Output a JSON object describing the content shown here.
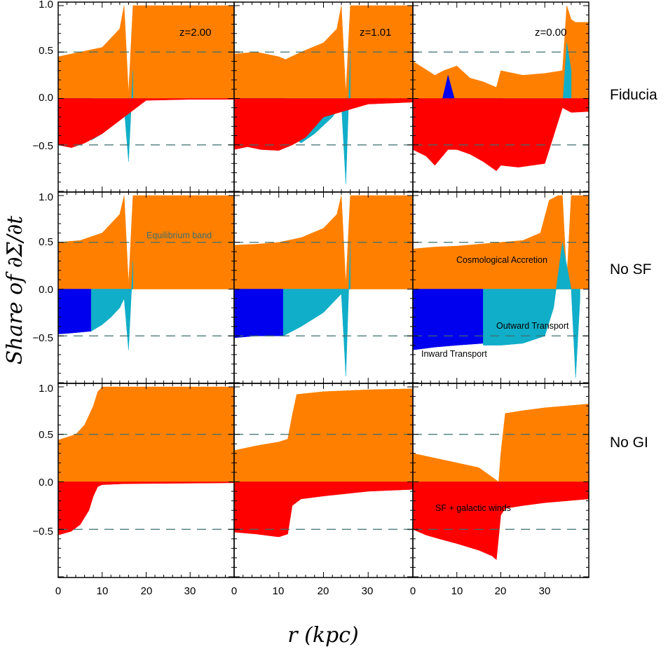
{
  "figure": {
    "ylabel": "Share of ∂Σ/∂t",
    "xlabel": "r (kpc)",
    "row_labels": [
      "Fiducia",
      "No SF",
      "No GI"
    ],
    "column_labels": [
      "z=2.00",
      "z=1.01",
      "z=0.00"
    ],
    "x_ticks": [
      "0",
      "10",
      "20",
      "30"
    ],
    "y_ticks": [
      "1.0",
      "0.5",
      "0.0",
      "−0.5"
    ],
    "annotations": {
      "equilibrium_band": "Equilibrium band",
      "cosmological_accretion": "Cosmological Accretion",
      "outward_transport": "Outward Transport",
      "inward_transport": "Inward Transport",
      "sf_winds": "SF + galactic winds"
    },
    "colors": {
      "cosmological_accretion": "#ff8000",
      "inward_transport": "#0000ee",
      "outward_transport": "#10aec8",
      "sf_winds": "#ff0000",
      "equilibrium_band_line": "#3d6e6e"
    }
  },
  "chart_data": [
    {
      "type": "area",
      "row": "Fiducia",
      "column": "z=2.00",
      "xlim": [
        0,
        40
      ],
      "ylim": [
        -1,
        1
      ],
      "equilibrium_band": [
        -0.5,
        0.5
      ],
      "series": [
        {
          "name": "Cosmological Accretion",
          "x": [
            0,
            5,
            10,
            14,
            15,
            16,
            17,
            18,
            25,
            40
          ],
          "values": [
            0.45,
            0.5,
            0.55,
            0.75,
            1.0,
            0.05,
            1.0,
            1.0,
            1.0,
            1.0
          ]
        },
        {
          "name": "Inward Transport",
          "x": [
            0,
            1,
            3,
            5,
            7.5
          ],
          "values": [
            -0.05,
            -0.3,
            -0.33,
            -0.36,
            -0.4
          ]
        },
        {
          "name": "Outward Transport",
          "x": [
            7.5,
            10,
            12,
            14,
            15,
            16,
            17
          ],
          "values": [
            -0.45,
            -0.38,
            -0.3,
            -0.22,
            -0.1,
            -0.68,
            0.3
          ]
        },
        {
          "name": "SF + galactic winds",
          "x": [
            0,
            3,
            6,
            10,
            15,
            20,
            30,
            40
          ],
          "values": [
            -0.5,
            -0.53,
            -0.48,
            -0.38,
            -0.2,
            -0.02,
            -0.01,
            -0.01
          ]
        }
      ]
    },
    {
      "type": "area",
      "row": "Fiducia",
      "column": "z=1.01",
      "xlim": [
        0,
        40
      ],
      "ylim": [
        -1,
        1
      ],
      "equilibrium_band": [
        -0.5,
        0.5
      ],
      "series": [
        {
          "name": "Cosmological Accretion",
          "x": [
            0,
            5,
            10,
            11.5,
            15,
            20,
            23,
            24,
            25,
            26,
            30,
            40
          ],
          "values": [
            0.48,
            0.5,
            0.45,
            0.42,
            0.5,
            0.6,
            0.75,
            1.0,
            0.05,
            1.0,
            1.0,
            1.0
          ]
        },
        {
          "name": "Inward Transport",
          "x": [
            0,
            2,
            6,
            9,
            11.5
          ],
          "values": [
            -0.05,
            -0.15,
            -0.25,
            -0.3,
            -0.36
          ]
        },
        {
          "name": "Outward Transport",
          "x": [
            11.5,
            15,
            18,
            22,
            24,
            25,
            26
          ],
          "values": [
            -0.36,
            -0.48,
            -0.38,
            -0.2,
            -0.05,
            -0.92,
            0.5
          ]
        },
        {
          "name": "SF + galactic winds",
          "x": [
            0,
            3,
            6,
            10,
            13,
            16,
            20,
            30,
            40
          ],
          "values": [
            -0.55,
            -0.52,
            -0.55,
            -0.56,
            -0.5,
            -0.42,
            -0.2,
            -0.06,
            -0.04
          ]
        }
      ]
    },
    {
      "type": "area",
      "row": "Fiducia",
      "column": "z=0.00",
      "xlim": [
        0,
        40
      ],
      "ylim": [
        -1,
        1
      ],
      "equilibrium_band": [
        -0.5,
        0.5
      ],
      "series": [
        {
          "name": "Cosmological Accretion",
          "x": [
            0,
            5,
            7,
            10,
            13,
            16,
            19,
            20,
            25,
            30,
            34,
            35,
            36,
            37,
            40
          ],
          "values": [
            0.4,
            0.25,
            0.3,
            0.35,
            0.22,
            0.18,
            0.12,
            0.3,
            0.25,
            0.27,
            0.3,
            1.0,
            0.85,
            0.82,
            0.82
          ]
        },
        {
          "name": "Inward Transport",
          "x": [
            6.5,
            8,
            10,
            13,
            16,
            20.5
          ],
          "values": [
            -0.05,
            0.25,
            -0.1,
            -0.2,
            -0.25,
            -0.3
          ]
        },
        {
          "name": "Outward Transport",
          "x": [
            20.5,
            24,
            28,
            32,
            34,
            35,
            36
          ],
          "values": [
            -0.55,
            -0.5,
            -0.45,
            -0.35,
            -0.1,
            0.6,
            0.3
          ]
        },
        {
          "name": "SF + galactic winds",
          "x": [
            0,
            3,
            5,
            8,
            10,
            13,
            16,
            19,
            20,
            24,
            30,
            34,
            36,
            40
          ],
          "values": [
            -0.55,
            -0.62,
            -0.72,
            -0.55,
            -0.55,
            -0.6,
            -0.68,
            -0.78,
            -0.72,
            -0.74,
            -0.7,
            -0.1,
            -0.15,
            -0.14
          ]
        }
      ]
    },
    {
      "type": "area",
      "row": "No SF",
      "column": "z=2.00",
      "xlim": [
        0,
        40
      ],
      "ylim": [
        -1,
        1
      ],
      "equilibrium_band": [
        -0.5,
        0.5
      ],
      "series": [
        {
          "name": "Cosmological Accretion",
          "x": [
            0,
            5,
            10,
            14,
            15,
            16,
            17,
            18,
            25,
            40
          ],
          "values": [
            0.5,
            0.52,
            0.6,
            0.8,
            1.0,
            0.05,
            1.0,
            1.0,
            1.0,
            1.0
          ]
        },
        {
          "name": "Inward Transport",
          "x": [
            0,
            3,
            7.5
          ],
          "values": [
            -0.48,
            -0.47,
            -0.45
          ]
        },
        {
          "name": "Outward Transport",
          "x": [
            7.5,
            10,
            12,
            14,
            15,
            16,
            17
          ],
          "values": [
            -0.45,
            -0.38,
            -0.3,
            -0.2,
            -0.1,
            -0.65,
            0.3
          ]
        },
        {
          "name": "SF + galactic winds",
          "x": [
            0,
            40
          ],
          "values": [
            0,
            0
          ]
        }
      ]
    },
    {
      "type": "area",
      "row": "No SF",
      "column": "z=1.01",
      "xlim": [
        0,
        40
      ],
      "ylim": [
        -1,
        1
      ],
      "equilibrium_band": [
        -0.5,
        0.5
      ],
      "series": [
        {
          "name": "Cosmological Accretion",
          "x": [
            0,
            5,
            10,
            15,
            20,
            23,
            24,
            25,
            26,
            30,
            40
          ],
          "values": [
            0.47,
            0.48,
            0.5,
            0.55,
            0.65,
            0.8,
            1.0,
            0.05,
            1.0,
            1.0,
            1.0
          ]
        },
        {
          "name": "Inward Transport",
          "x": [
            0,
            5,
            11
          ],
          "values": [
            -0.52,
            -0.5,
            -0.5
          ]
        },
        {
          "name": "Outward Transport",
          "x": [
            11,
            15,
            20,
            24,
            25,
            26
          ],
          "values": [
            -0.5,
            -0.4,
            -0.25,
            -0.05,
            -0.93,
            0.5
          ]
        },
        {
          "name": "SF + galactic winds",
          "x": [
            0,
            40
          ],
          "values": [
            0,
            0
          ]
        }
      ]
    },
    {
      "type": "area",
      "row": "No SF",
      "column": "z=0.00",
      "xlim": [
        0,
        40
      ],
      "ylim": [
        -1,
        1
      ],
      "equilibrium_band": [
        -0.5,
        0.5
      ],
      "series": [
        {
          "name": "Cosmological Accretion",
          "x": [
            0,
            5,
            10,
            15,
            20,
            25,
            29,
            31,
            33,
            34,
            35,
            36,
            37,
            40
          ],
          "values": [
            0.43,
            0.45,
            0.46,
            0.48,
            0.5,
            0.52,
            0.6,
            0.95,
            1.0,
            1.0,
            0.1,
            1.0,
            1.0,
            1.0
          ]
        },
        {
          "name": "Inward Transport",
          "x": [
            0,
            5,
            10,
            16
          ],
          "values": [
            -0.65,
            -0.62,
            -0.6,
            -0.58
          ]
        },
        {
          "name": "Outward Transport",
          "x": [
            16,
            20,
            25,
            30,
            32,
            34,
            36,
            37,
            38
          ],
          "values": [
            -0.6,
            -0.6,
            -0.58,
            -0.5,
            -0.2,
            0.5,
            0.0,
            -0.95,
            -0.1
          ]
        },
        {
          "name": "SF + galactic winds",
          "x": [
            0,
            40
          ],
          "values": [
            0,
            0
          ]
        }
      ]
    },
    {
      "type": "area",
      "row": "No GI",
      "column": "z=2.00",
      "xlim": [
        0,
        40
      ],
      "ylim": [
        -1,
        1
      ],
      "equilibrium_band": [
        -0.5,
        0.5
      ],
      "series": [
        {
          "name": "Cosmological Accretion",
          "x": [
            0,
            4,
            6,
            8,
            9,
            10,
            15,
            40
          ],
          "values": [
            0.44,
            0.5,
            0.6,
            0.8,
            0.95,
            1.0,
            1.0,
            1.0
          ]
        },
        {
          "name": "Inward Transport",
          "x": [
            0,
            40
          ],
          "values": [
            0,
            0
          ]
        },
        {
          "name": "Outward Transport",
          "x": [
            0,
            40
          ],
          "values": [
            0,
            0
          ]
        },
        {
          "name": "SF + galactic winds",
          "x": [
            0,
            3,
            5,
            7,
            8,
            9,
            10,
            15,
            40
          ],
          "values": [
            -0.56,
            -0.52,
            -0.45,
            -0.3,
            -0.15,
            -0.05,
            -0.03,
            -0.02,
            -0.01
          ]
        }
      ]
    },
    {
      "type": "area",
      "row": "No GI",
      "column": "z=1.01",
      "xlim": [
        0,
        40
      ],
      "ylim": [
        -1,
        1
      ],
      "equilibrium_band": [
        -0.5,
        0.5
      ],
      "series": [
        {
          "name": "Cosmological Accretion",
          "x": [
            0,
            5,
            10,
            12,
            13,
            14,
            20,
            30,
            40
          ],
          "values": [
            0.33,
            0.38,
            0.42,
            0.45,
            0.7,
            0.92,
            0.95,
            0.97,
            0.98
          ]
        },
        {
          "name": "Inward Transport",
          "x": [
            0,
            40
          ],
          "values": [
            0,
            0
          ]
        },
        {
          "name": "Outward Transport",
          "x": [
            0,
            40
          ],
          "values": [
            0,
            0
          ]
        },
        {
          "name": "SF + galactic winds",
          "x": [
            0,
            5,
            10,
            12,
            13,
            15,
            20,
            30,
            40
          ],
          "values": [
            -0.53,
            -0.55,
            -0.58,
            -0.55,
            -0.25,
            -0.18,
            -0.15,
            -0.1,
            -0.08
          ]
        }
      ]
    },
    {
      "type": "area",
      "row": "No GI",
      "column": "z=0.00",
      "xlim": [
        0,
        40
      ],
      "ylim": [
        -1,
        1
      ],
      "equilibrium_band": [
        -0.5,
        0.5
      ],
      "series": [
        {
          "name": "Cosmological Accretion",
          "x": [
            0,
            5,
            10,
            15,
            18,
            19.5,
            20,
            21,
            25,
            30,
            35,
            40
          ],
          "values": [
            0.3,
            0.25,
            0.2,
            0.15,
            0.05,
            0.0,
            0.3,
            0.72,
            0.75,
            0.78,
            0.8,
            0.82
          ]
        },
        {
          "name": "Inward Transport",
          "x": [
            0,
            40
          ],
          "values": [
            0,
            0
          ]
        },
        {
          "name": "Outward Transport",
          "x": [
            0,
            40
          ],
          "values": [
            0,
            0
          ]
        },
        {
          "name": "SF + galactic winds",
          "x": [
            0,
            3,
            6,
            10,
            15,
            18,
            19,
            20,
            21,
            25,
            30,
            40
          ],
          "values": [
            -0.5,
            -0.56,
            -0.6,
            -0.65,
            -0.72,
            -0.78,
            -0.82,
            -0.35,
            -0.28,
            -0.25,
            -0.22,
            -0.18
          ]
        }
      ]
    }
  ]
}
